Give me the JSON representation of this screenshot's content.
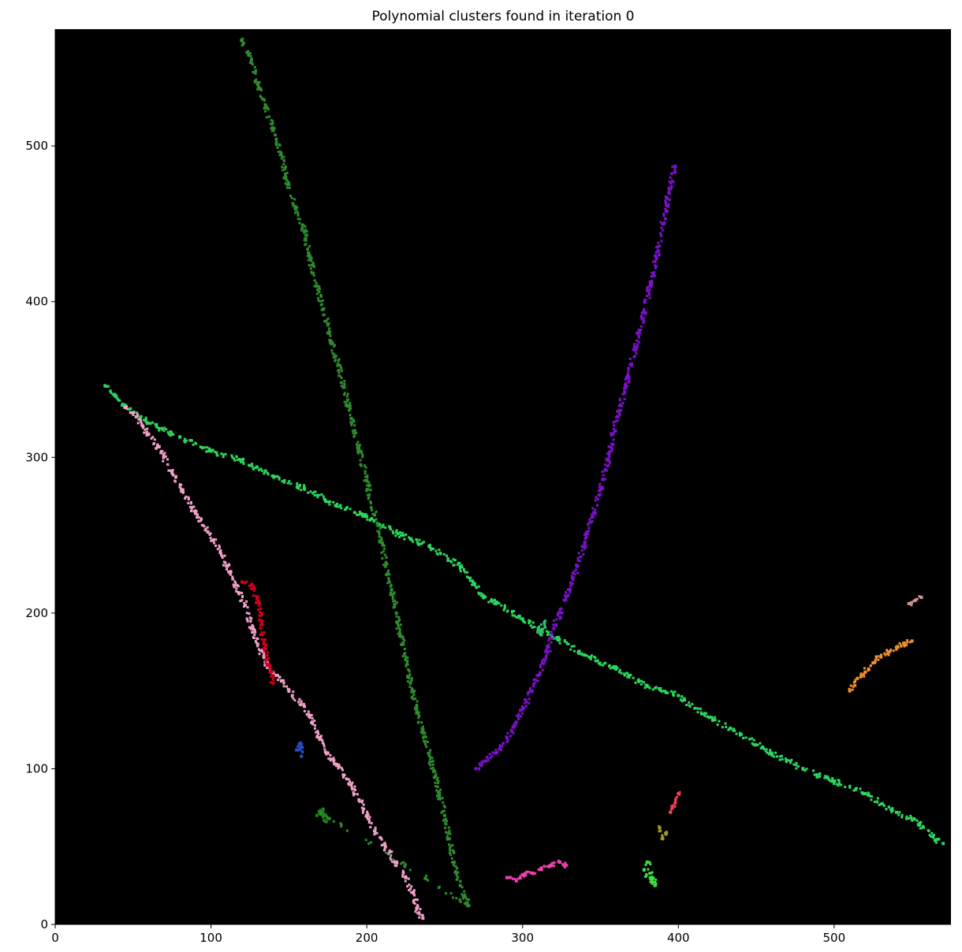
{
  "chart_data": {
    "type": "scatter",
    "title": "Polynomial clusters found in iteration 0",
    "xlabel": "",
    "ylabel": "",
    "xlim": [
      0,
      575
    ],
    "ylim": [
      0,
      575
    ],
    "x_ticks": [
      0,
      100,
      200,
      300,
      400,
      500
    ],
    "y_ticks": [
      0,
      100,
      200,
      300,
      400,
      500
    ],
    "grid": false,
    "legend": "none",
    "background": "#000000",
    "clusters": [
      {
        "color": "#2dd65f",
        "description": "long light-green line",
        "points": [
          [
            32,
            346
          ],
          [
            38,
            340
          ],
          [
            45,
            333
          ],
          [
            60,
            322
          ],
          [
            80,
            313
          ],
          [
            100,
            304
          ],
          [
            120,
            298
          ],
          [
            140,
            288
          ],
          [
            160,
            280
          ],
          [
            180,
            269
          ],
          [
            200,
            262
          ],
          [
            220,
            251
          ],
          [
            240,
            243
          ],
          [
            260,
            230
          ],
          [
            275,
            210
          ],
          [
            283,
            207
          ],
          [
            300,
            196
          ],
          [
            310,
            190
          ],
          [
            322,
            184
          ],
          [
            340,
            173
          ],
          [
            360,
            164
          ],
          [
            380,
            153
          ],
          [
            400,
            147
          ],
          [
            420,
            133
          ],
          [
            440,
            122
          ],
          [
            460,
            110
          ],
          [
            480,
            100
          ],
          [
            500,
            92
          ],
          [
            520,
            84
          ],
          [
            540,
            72
          ],
          [
            555,
            65
          ],
          [
            565,
            54
          ],
          [
            570,
            52
          ]
        ]
      },
      {
        "color": "#f0a0c8",
        "description": "pink line",
        "points": [
          [
            45,
            332
          ],
          [
            52,
            326
          ],
          [
            60,
            315
          ],
          [
            68,
            303
          ],
          [
            75,
            290
          ],
          [
            82,
            278
          ],
          [
            90,
            264
          ],
          [
            98,
            252
          ],
          [
            106,
            239
          ],
          [
            112,
            226
          ],
          [
            118,
            213
          ],
          [
            122,
            205
          ],
          [
            126,
            190
          ],
          [
            130,
            180
          ],
          [
            134,
            172
          ],
          [
            137,
            165
          ],
          [
            142,
            160
          ],
          [
            150,
            150
          ],
          [
            160,
            140
          ],
          [
            165,
            130
          ],
          [
            170,
            120
          ],
          [
            175,
            110
          ],
          [
            180,
            103
          ],
          [
            185,
            96
          ],
          [
            190,
            90
          ],
          [
            195,
            80
          ],
          [
            200,
            70
          ],
          [
            205,
            60
          ],
          [
            212,
            50
          ],
          [
            218,
            40
          ],
          [
            225,
            30
          ],
          [
            230,
            20
          ],
          [
            232,
            10
          ],
          [
            236,
            4
          ]
        ]
      },
      {
        "color": "#7b10c8",
        "description": "purple line",
        "points": [
          [
            270,
            100
          ],
          [
            276,
            105
          ],
          [
            283,
            110
          ],
          [
            290,
            120
          ],
          [
            296,
            130
          ],
          [
            300,
            138
          ],
          [
            306,
            150
          ],
          [
            310,
            160
          ],
          [
            316,
            175
          ],
          [
            320,
            190
          ],
          [
            324,
            200
          ],
          [
            330,
            215
          ],
          [
            335,
            230
          ],
          [
            340,
            245
          ],
          [
            345,
            262
          ],
          [
            350,
            280
          ],
          [
            355,
            298
          ],
          [
            358,
            315
          ],
          [
            362,
            330
          ],
          [
            366,
            345
          ],
          [
            370,
            360
          ],
          [
            375,
            380
          ],
          [
            378,
            393
          ],
          [
            382,
            410
          ],
          [
            386,
            428
          ],
          [
            390,
            450
          ],
          [
            394,
            470
          ],
          [
            398,
            487
          ]
        ]
      },
      {
        "color": "#2e8b2e",
        "description": "dark green line",
        "points": [
          [
            120,
            568
          ],
          [
            126,
            555
          ],
          [
            130,
            540
          ],
          [
            135,
            526
          ],
          [
            140,
            510
          ],
          [
            145,
            495
          ],
          [
            148,
            480
          ],
          [
            154,
            460
          ],
          [
            160,
            445
          ],
          [
            163,
            430
          ],
          [
            168,
            410
          ],
          [
            172,
            395
          ],
          [
            176,
            380
          ],
          [
            180,
            365
          ],
          [
            185,
            345
          ],
          [
            190,
            325
          ],
          [
            195,
            305
          ],
          [
            200,
            285
          ],
          [
            205,
            263
          ],
          [
            210,
            245
          ],
          [
            212,
            230
          ],
          [
            216,
            215
          ],
          [
            219,
            200
          ],
          [
            222,
            185
          ],
          [
            225,
            170
          ],
          [
            228,
            155
          ],
          [
            232,
            140
          ],
          [
            236,
            125
          ],
          [
            240,
            110
          ],
          [
            244,
            95
          ],
          [
            246,
            85
          ],
          [
            250,
            70
          ],
          [
            253,
            55
          ],
          [
            256,
            40
          ],
          [
            260,
            25
          ],
          [
            265,
            12
          ],
          [
            170,
            72
          ],
          [
            176,
            68
          ]
        ]
      },
      {
        "color": "#d0001e",
        "description": "red cluster",
        "points": [
          [
            120,
            220
          ],
          [
            126,
            218
          ],
          [
            130,
            210
          ],
          [
            132,
            195
          ],
          [
            134,
            180
          ],
          [
            136,
            170
          ],
          [
            138,
            162
          ],
          [
            140,
            155
          ]
        ]
      },
      {
        "color": "#f09030",
        "description": "orange cluster",
        "points": [
          [
            510,
            150
          ],
          [
            515,
            158
          ],
          [
            520,
            162
          ],
          [
            525,
            168
          ],
          [
            530,
            172
          ],
          [
            535,
            175
          ],
          [
            540,
            178
          ],
          [
            545,
            180
          ],
          [
            550,
            182
          ]
        ]
      },
      {
        "color": "#d09090",
        "description": "rose cluster",
        "points": [
          [
            548,
            206
          ],
          [
            552,
            208
          ],
          [
            556,
            210
          ]
        ]
      },
      {
        "color": "#f040b0",
        "description": "magenta cluster",
        "points": [
          [
            290,
            30
          ],
          [
            296,
            28
          ],
          [
            300,
            32
          ],
          [
            306,
            33
          ],
          [
            312,
            36
          ],
          [
            318,
            38
          ],
          [
            324,
            40
          ],
          [
            328,
            38
          ]
        ]
      },
      {
        "color": "#2a50c8",
        "description": "blue cluster",
        "points": [
          [
            155,
            112
          ],
          [
            157,
            116
          ],
          [
            158,
            108
          ]
        ]
      },
      {
        "color": "#f04050",
        "description": "coral red cluster",
        "points": [
          [
            395,
            72
          ],
          [
            398,
            78
          ],
          [
            400,
            84
          ]
        ]
      },
      {
        "color": "#a0a020",
        "description": "olive cluster",
        "points": [
          [
            388,
            62
          ],
          [
            392,
            58
          ],
          [
            390,
            55
          ]
        ]
      },
      {
        "color": "#40e040",
        "description": "bright green cluster",
        "points": [
          [
            378,
            35
          ],
          [
            382,
            30
          ],
          [
            385,
            25
          ],
          [
            380,
            40
          ]
        ]
      },
      {
        "color": "#208020",
        "description": "green cluster lower",
        "points": [
          [
            168,
            70
          ],
          [
            172,
            74
          ],
          [
            174,
            66
          ]
        ]
      },
      {
        "color": "#30c070",
        "description": "small green near crossing",
        "points": [
          [
            310,
            190
          ],
          [
            312,
            186
          ],
          [
            314,
            194
          ]
        ]
      }
    ]
  }
}
